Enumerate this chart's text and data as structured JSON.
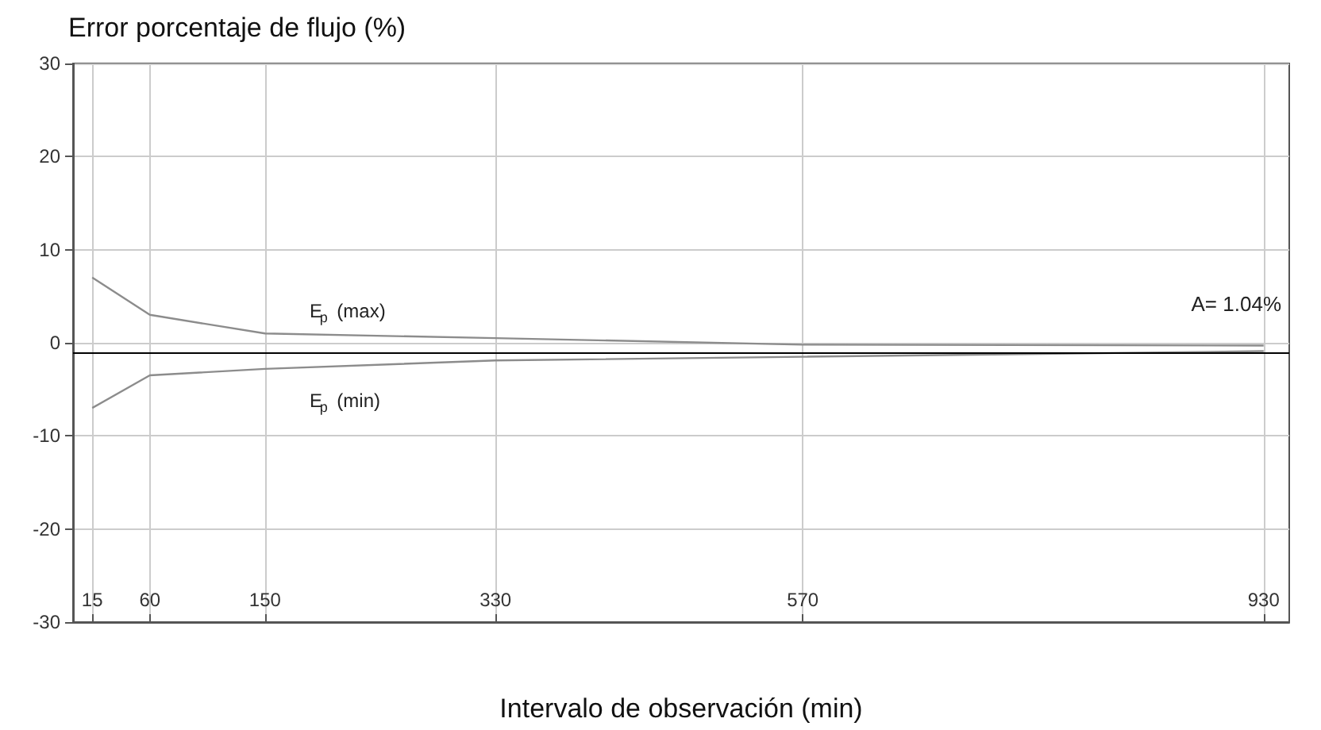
{
  "chart_data": {
    "type": "line",
    "ylabel": "Error porcentaje de flujo (%)",
    "xlabel": "Intervalo de observación (min)",
    "x": [
      15,
      60,
      150,
      330,
      570,
      930
    ],
    "series": [
      {
        "name": "E$_{p}$ (max)",
        "color": "#8c8c8c",
        "values": [
          7,
          3,
          1,
          0.5,
          -0.2,
          -0.3
        ]
      },
      {
        "name": "E$_{p}$ (min)",
        "color": "#8c8c8c",
        "values": [
          -7,
          -3.5,
          -2.8,
          -1.9,
          -1.5,
          -0.9
        ]
      }
    ],
    "ref_lines": [
      {
        "axis": "y",
        "value": -1,
        "color": "#000000"
      }
    ],
    "annotations": [
      "A= 1.04%"
    ],
    "xlim": [
      0,
      950
    ],
    "xticks": [
      15,
      60,
      150,
      330,
      570,
      930
    ],
    "ylim": [
      -30,
      30
    ],
    "yticks": [
      -30,
      -20,
      -10,
      0,
      10,
      20,
      30
    ],
    "grid": true,
    "legend": false,
    "marker": "none",
    "line_style": "solid"
  }
}
